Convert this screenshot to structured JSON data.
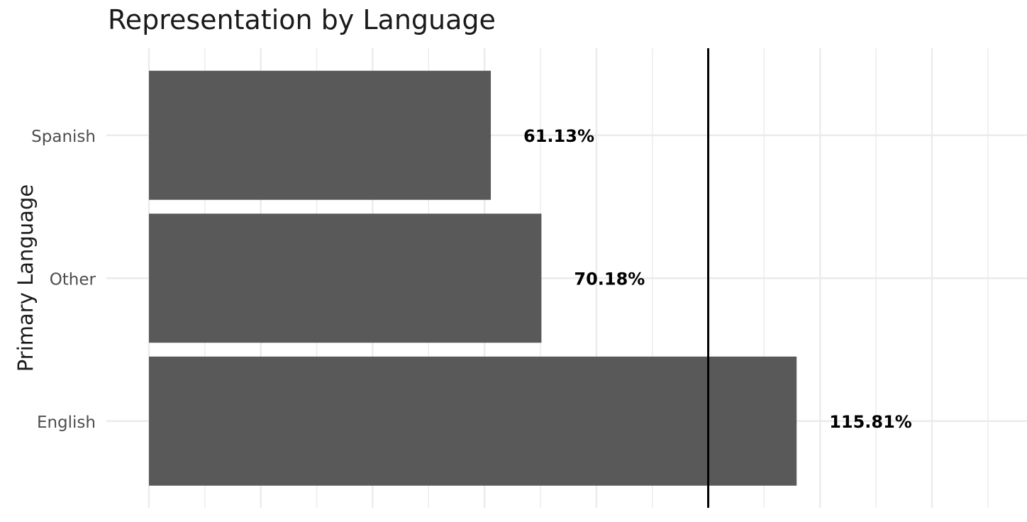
{
  "chart_data": {
    "type": "bar",
    "orientation": "horizontal",
    "title": "Representation by Language",
    "xlabel": "",
    "ylabel": "Primary Language",
    "categories": [
      "Spanish",
      "Other",
      "English"
    ],
    "values": [
      61.13,
      70.18,
      115.81
    ],
    "data_labels": [
      "61.13%",
      "70.18%",
      "115.81%"
    ],
    "xlim": [
      0,
      157
    ],
    "reference_line": 100,
    "x_tick_labels_visible": false,
    "grid": true,
    "legend": "none",
    "colors": {
      "bar": "#595959",
      "grid": "#ebebeb",
      "reference_line": "#000000",
      "label": "#000000",
      "tick_label": "#4d4d4d"
    }
  }
}
